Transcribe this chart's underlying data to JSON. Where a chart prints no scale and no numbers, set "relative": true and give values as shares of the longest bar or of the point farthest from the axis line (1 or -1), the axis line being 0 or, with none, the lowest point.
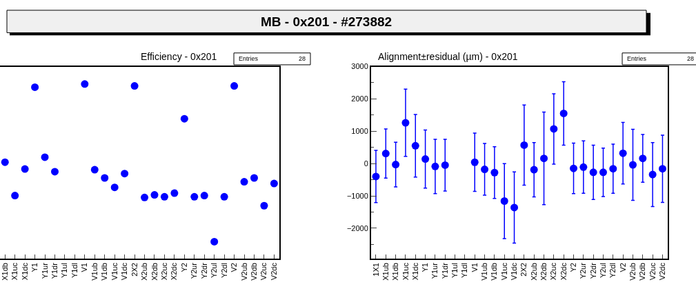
{
  "chart_data": [
    {
      "type": "other",
      "title": "MB - 0x201 - #273882"
    },
    {
      "type": "scatter",
      "title": "Efficiency - 0x201",
      "relative": true,
      "marker": "circle",
      "tick_labels": "x",
      "annotations": [
        "Entries",
        "28"
      ],
      "categories": [
        "X1db",
        "X1uc",
        "X1dc",
        "Y1",
        "Y1ur",
        "Y1dr",
        "Y1ul",
        "Y1dl",
        "V1",
        "V1ub",
        "V1db",
        "V1uc",
        "V1dc",
        "2X2",
        "X2ub",
        "X2db",
        "X2uc",
        "X2dc",
        "Y2",
        "Y2ur",
        "Y2dr",
        "Y2ul",
        "Y2dl",
        "V2",
        "V2ub",
        "V2db",
        "V2uc",
        "V2dc"
      ],
      "series": [
        {
          "color": "#0000ff",
          "values": [
            0.552,
            0.361,
            0.513,
            0.982,
            0.581,
            0.498,
            null,
            null,
            1,
            0.509,
            0.462,
            0.408,
            0.487,
            0.989,
            0.35,
            0.365,
            0.354,
            0.375,
            0.801,
            0.354,
            0.361,
            0.097,
            0.354,
            0.989,
            0.44,
            0.462,
            0.303,
            0.43
          ]
        }
      ]
    },
    {
      "type": "scatter",
      "title": "Alignment±residual (µm) - 0x201",
      "marker": "circle",
      "annotations": [
        "Entries",
        "28"
      ],
      "categories": [
        "1X1",
        "X1ub",
        "X1db",
        "X1uc",
        "X1dc",
        "Y1",
        "Y1ur",
        "Y1dr",
        "Y1ul",
        "Y1dl",
        "V1",
        "V1ub",
        "V1db",
        "V1uc",
        "V1dc",
        "2X2",
        "X2ub",
        "X2db",
        "X2uc",
        "X2dc",
        "Y2",
        "Y2ur",
        "Y2dr",
        "Y2ul",
        "Y2dl",
        "V2",
        "V2ub",
        "V2db",
        "V2uc",
        "V2dc"
      ],
      "ylim": [
        -2940,
        3000
      ],
      "yticks": [
        -2000,
        -1000,
        0,
        1000,
        2000,
        3000
      ],
      "series": [
        {
          "color": "#0000ff",
          "values": [
            -400,
            310,
            -30,
            1260,
            550,
            140,
            -90,
            -50,
            null,
            null,
            40,
            -180,
            -280,
            -1160,
            -1360,
            570,
            -190,
            160,
            1070,
            1550,
            -150,
            -110,
            -270,
            -270,
            -160,
            320,
            -40,
            160,
            -340,
            -160
          ],
          "errors": [
            810,
            760,
            690,
            1040,
            970,
            900,
            840,
            800,
            null,
            null,
            900,
            800,
            800,
            1160,
            1100,
            1240,
            840,
            1430,
            1090,
            980,
            780,
            810,
            840,
            750,
            760,
            950,
            1100,
            740,
            990,
            1040
          ]
        }
      ]
    }
  ]
}
